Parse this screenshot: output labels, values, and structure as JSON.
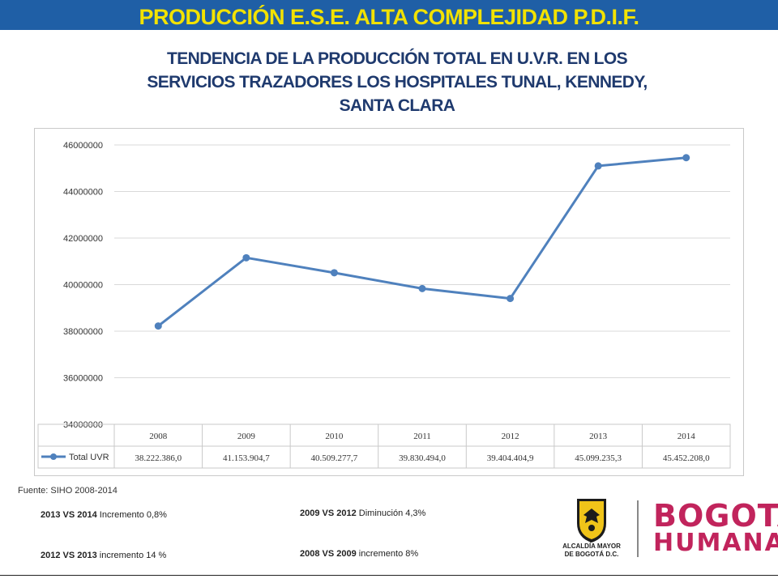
{
  "header": {
    "title": "PRODUCCIÓN  E.S.E.  ALTA COMPLEJIDAD P.D.I.F."
  },
  "subtitle_lines": [
    "TENDENCIA  DE LA PRODUCCIÓN TOTAL EN U.V.R. EN LOS",
    "SERVICIOS TRAZADORES LOS HOSPITALES TUNAL, KENNEDY,",
    "SANTA CLARA"
  ],
  "colors": {
    "header_bg": "#1f5fa6",
    "header_text": "#f2e200",
    "subtitle": "#1f3a6e",
    "series": "#4f81bd",
    "brand": "#c1245c"
  },
  "chart_data": {
    "type": "line",
    "categories": [
      "2008",
      "2009",
      "2010",
      "2011",
      "2012",
      "2013",
      "2014"
    ],
    "series": [
      {
        "name": "Total UVR",
        "values": [
          38222386.0,
          41153904.7,
          40509277.7,
          39830494.0,
          39404404.9,
          45099235.3,
          45452208.0
        ]
      }
    ],
    "table_values": [
      "38.222.386,0",
      "41.153.904,7",
      "40.509.277,7",
      "39.830.494,0",
      "39.404.404,9",
      "45.099.235,3",
      "45.452.208,0"
    ],
    "yticks": [
      "34000000",
      "36000000",
      "38000000",
      "40000000",
      "42000000",
      "44000000",
      "46000000"
    ],
    "ylim": [
      34000000,
      46000000
    ],
    "grid": true,
    "legend": "data-table"
  },
  "source": "Fuente: SIHO 2008-2014",
  "comparisons": {
    "c1": {
      "years": "2013 VS 2014",
      "text": " Incremento  0,8%"
    },
    "c2": {
      "years": "2012 VS 2013",
      "text": " incremento  14  %"
    },
    "c3": {
      "years": "2009 VS 2012",
      "text": " Diminución 4,3%"
    },
    "c4": {
      "years": "2008 VS 2009",
      "text": " incremento  8%"
    }
  },
  "logos": {
    "alcaldia": [
      "ALCALDÍA MAYOR",
      "DE BOGOTÁ D.C."
    ],
    "bogota": "BOGOTÁ",
    "humana": "HUMANA"
  }
}
